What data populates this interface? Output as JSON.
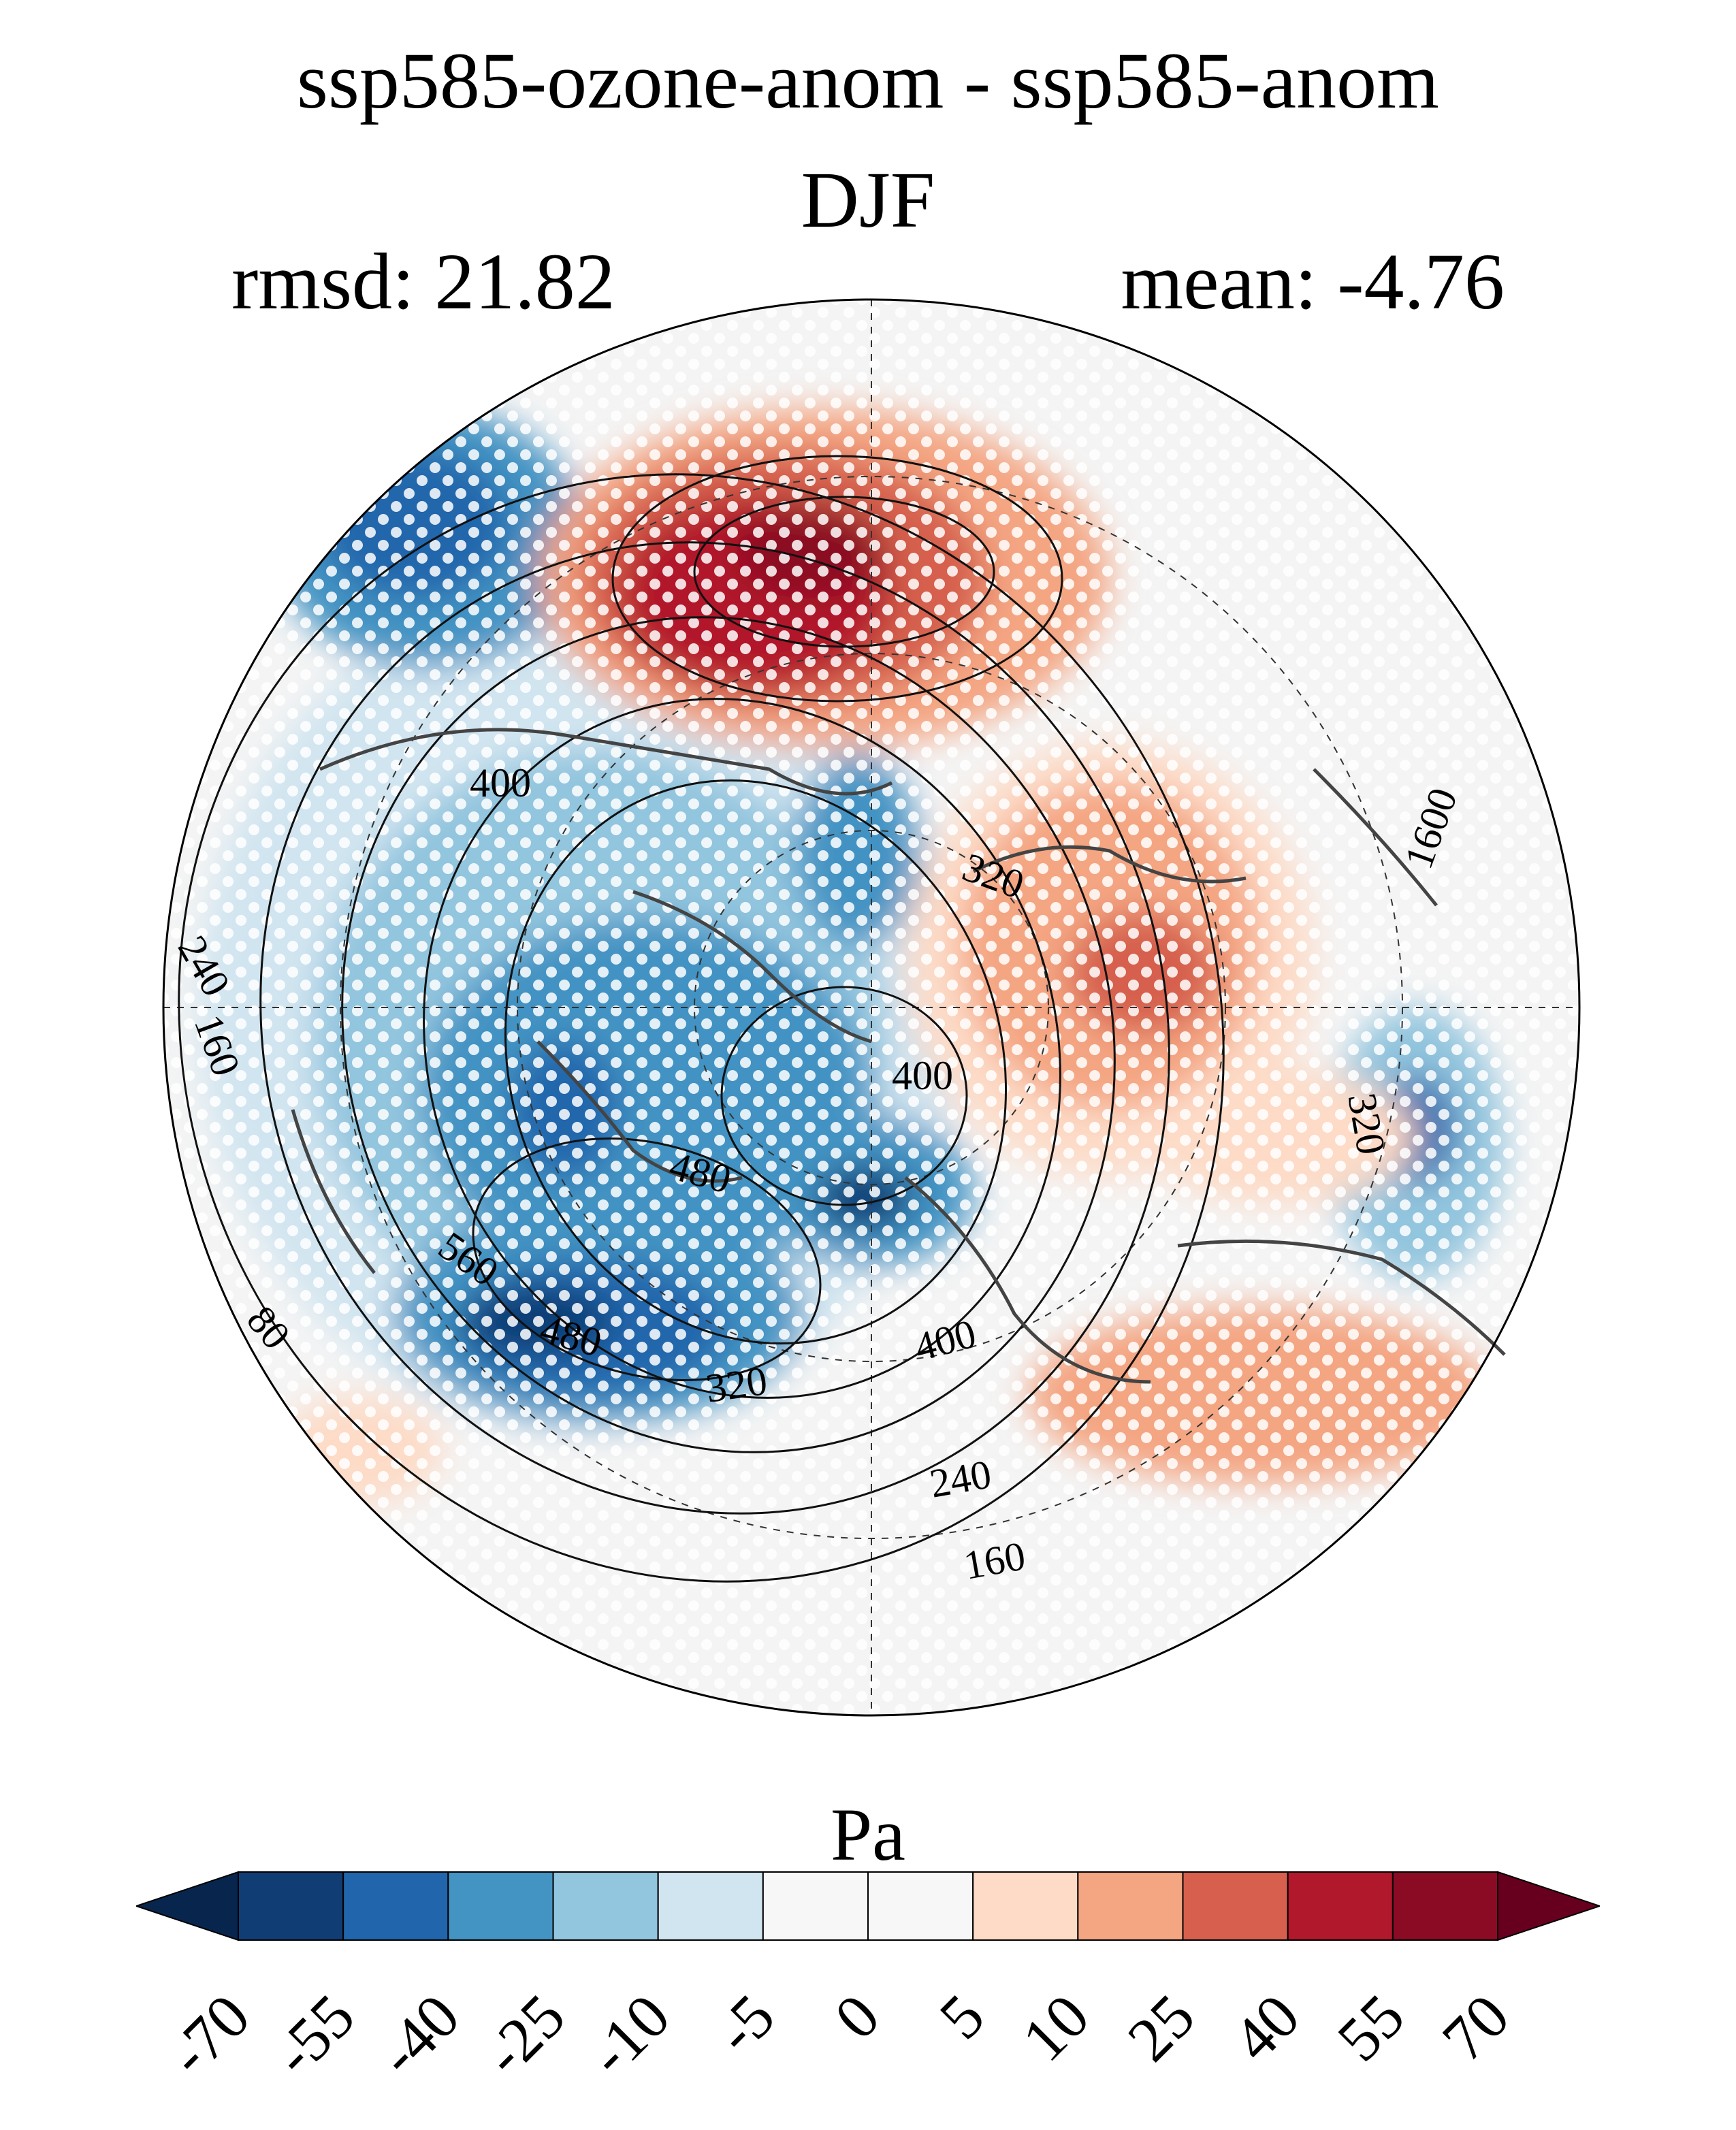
{
  "title": "ssp585-ozone-anom - ssp585-anom",
  "season": "DJF",
  "rmsd_label": "rmsd: 21.82",
  "mean_label": "mean: -4.76",
  "colorbar": {
    "unit": "Pa",
    "ticks": [
      "-70",
      "-55",
      "-40",
      "-25",
      "-10",
      "-5",
      "0",
      "5",
      "10",
      "25",
      "40",
      "55",
      "70"
    ],
    "colors": [
      "#08254d",
      "#113d75",
      "#2166ac",
      "#4393c3",
      "#92c5de",
      "#d1e5f0",
      "#f7f7f7",
      "#f7f7f7",
      "#fddbc7",
      "#f4a582",
      "#d6604d",
      "#b2182b",
      "#8b0a24",
      "#67001f"
    ]
  },
  "contour_labels": [
    "400",
    "320",
    "1600",
    "240",
    "160",
    "320",
    "400",
    "480",
    "560",
    "80",
    "480",
    "320",
    "400",
    "240",
    "160"
  ]
}
